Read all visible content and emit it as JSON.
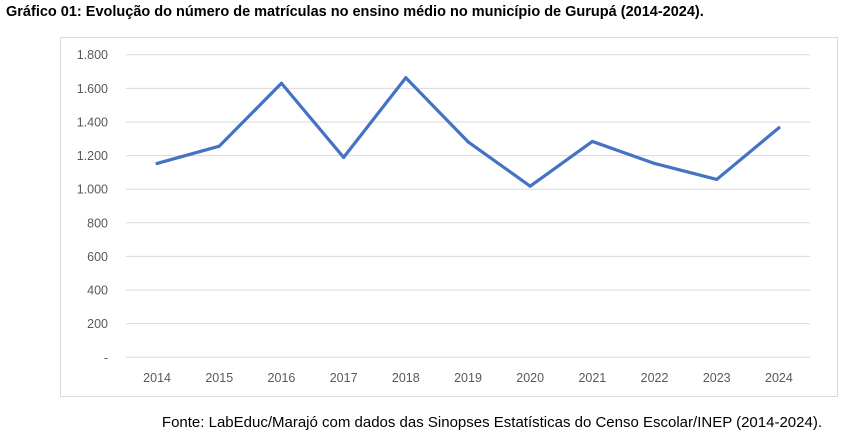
{
  "chart_data": {
    "type": "line",
    "title": "Gráfico 01: Evolução do número de matrículas no ensino médio no município de Gurupá (2014-2024).",
    "source": "Fonte: LabEduc/Marajó com dados das Sinopses Estatísticas do Censo Escolar/INEP (2014-2024).",
    "categories": [
      "2014",
      "2015",
      "2016",
      "2017",
      "2018",
      "2019",
      "2020",
      "2021",
      "2022",
      "2023",
      "2024"
    ],
    "series": [
      {
        "values": [
          1153,
          1256,
          1630,
          1189,
          1663,
          1282,
          1018,
          1284,
          1153,
          1058,
          1365
        ],
        "color": "#4472c4"
      }
    ],
    "ylim": [
      0,
      1800
    ],
    "yticks": [
      0,
      200,
      400,
      600,
      800,
      1000,
      1200,
      1400,
      1600,
      1800
    ],
    "ytick_labels": [
      "-",
      "200",
      "400",
      "600",
      "800",
      "1.000",
      "1.200",
      "1.400",
      "1.600",
      "1.800"
    ],
    "grid": true,
    "legend": "none",
    "xlabel": "",
    "ylabel": ""
  }
}
